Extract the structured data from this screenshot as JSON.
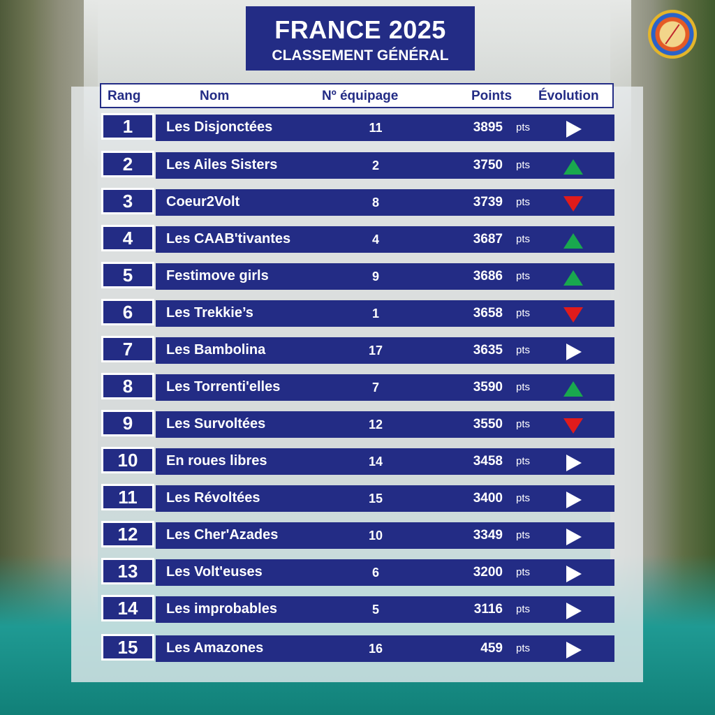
{
  "title": {
    "main": "FRANCE 2025",
    "sub": "CLASSEMENT GÉNÉRAL"
  },
  "header": {
    "rank": "Rang",
    "name": "Nom",
    "crew": "Nº équipage",
    "points": "Points",
    "evolution": "Évolution"
  },
  "unit_label": "pts",
  "colors": {
    "navy": "#232c85",
    "up": "#19a84e",
    "down": "#e01b1b",
    "neutral": "#ffffff"
  },
  "icons": {
    "up": "triangle-up-icon",
    "down": "triangle-down-icon",
    "same": "triangle-right-icon"
  },
  "rows": [
    {
      "rank": "1",
      "name": "Les Disjonctées",
      "crew": "11",
      "points": "3895",
      "evolution": "same"
    },
    {
      "rank": "2",
      "name": "Les Ailes Sisters",
      "crew": "2",
      "points": "3750",
      "evolution": "up"
    },
    {
      "rank": "3",
      "name": "Coeur2Volt",
      "crew": "8",
      "points": "3739",
      "evolution": "down"
    },
    {
      "rank": "4",
      "name": "Les CAAB'tivantes",
      "crew": "4",
      "points": "3687",
      "evolution": "up"
    },
    {
      "rank": "5",
      "name": "Festimove girls",
      "crew": "9",
      "points": "3686",
      "evolution": "up"
    },
    {
      "rank": "6",
      "name": "Les Trekkie’s",
      "crew": "1",
      "points": "3658",
      "evolution": "down"
    },
    {
      "rank": "7",
      "name": "Les Bambolina",
      "crew": "17",
      "points": "3635",
      "evolution": "same"
    },
    {
      "rank": "8",
      "name": "Les Torrenti'elles",
      "crew": "7",
      "points": "3590",
      "evolution": "up"
    },
    {
      "rank": "9",
      "name": "Les Survoltées",
      "crew": "12",
      "points": "3550",
      "evolution": "down"
    },
    {
      "rank": "10",
      "name": "En roues libres",
      "crew": "14",
      "points": "3458",
      "evolution": "same"
    },
    {
      "rank": "11",
      "name": "Les Révoltées",
      "crew": "15",
      "points": "3400",
      "evolution": "same"
    },
    {
      "rank": "12",
      "name": "Les Cher'Azades",
      "crew": "10",
      "points": "3349",
      "evolution": "same"
    },
    {
      "rank": "13",
      "name": "Les Volt'euses",
      "crew": "6",
      "points": "3200",
      "evolution": "same"
    },
    {
      "rank": "14",
      "name": "Les improbables",
      "crew": "5",
      "points": "3116",
      "evolution": "same"
    },
    {
      "rank": "15",
      "name": "Les Amazones",
      "crew": "16",
      "points": "459",
      "evolution": "same"
    }
  ]
}
